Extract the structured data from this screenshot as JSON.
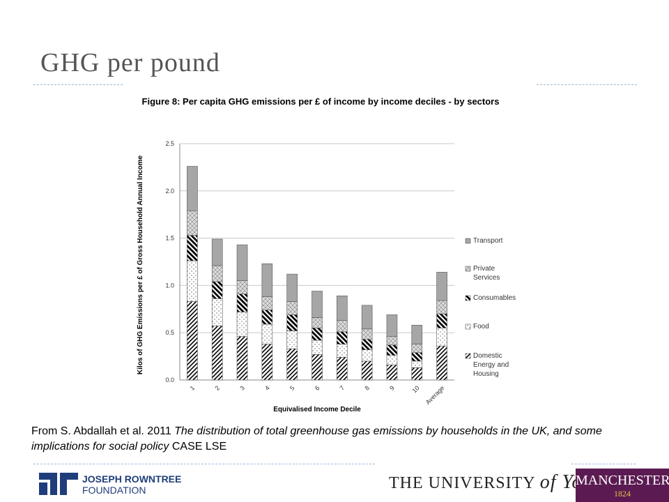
{
  "slide": {
    "title": "GHG per pound",
    "citation": {
      "prefix": "From S. Abdallah et al.  2011 ",
      "italic": "The distribution of total greenhouse gas emissions by households in the UK, and some implications for social policy",
      "suffix": " CASE LSE"
    },
    "logos": {
      "jrf_line1": "JOSEPH ROWNTREE",
      "jrf_line2": "FOUNDATION",
      "york_main": "THE UNIVERSITY",
      "york_of": "of York",
      "manchester": "MANCHESTER",
      "manchester_year": "1824"
    }
  },
  "chart_data": {
    "type": "stacked_bar",
    "title": "Figure 8: Per capita GHG emissions per £ of income by income deciles - by sectors",
    "y_label": "Kilos of GHG Emissions per £ of Gross Household Annual Income",
    "x_label": "Equivalised Income Decile",
    "categories": [
      "1",
      "2",
      "3",
      "4",
      "5",
      "6",
      "7",
      "8",
      "9",
      "10",
      "Average"
    ],
    "series": [
      {
        "name": "Domestic Energy and Housing",
        "color": "#ffffff",
        "pattern": "diagonal",
        "values": [
          0.83,
          0.57,
          0.46,
          0.38,
          0.33,
          0.27,
          0.24,
          0.2,
          0.16,
          0.13,
          0.36
        ]
      },
      {
        "name": "Food",
        "color": "#ffffff",
        "pattern": "dots",
        "values": [
          0.43,
          0.29,
          0.26,
          0.21,
          0.19,
          0.15,
          0.14,
          0.12,
          0.1,
          0.07,
          0.19
        ]
      },
      {
        "name": "Consumables",
        "color": "#ffffff",
        "pattern": "bold-backslash",
        "values": [
          0.27,
          0.18,
          0.19,
          0.15,
          0.17,
          0.13,
          0.13,
          0.11,
          0.11,
          0.09,
          0.15
        ]
      },
      {
        "name": "Private Services",
        "color": "#d9d9d9",
        "pattern": "crosshatch",
        "values": [
          0.26,
          0.17,
          0.14,
          0.14,
          0.14,
          0.11,
          0.12,
          0.11,
          0.09,
          0.09,
          0.14
        ]
      },
      {
        "name": "Transport",
        "color": "#a6a6a6",
        "pattern": "solid",
        "values": [
          0.47,
          0.28,
          0.38,
          0.35,
          0.29,
          0.28,
          0.26,
          0.25,
          0.23,
          0.2,
          0.3
        ]
      }
    ],
    "ylim": [
      0,
      2.5
    ],
    "yticks": [
      {
        "value": 0,
        "label": "0.0"
      },
      {
        "value": 0.5,
        "label": "0.5"
      },
      {
        "value": 1,
        "label": "1.0"
      },
      {
        "value": 1.5,
        "label": "1.5"
      },
      {
        "value": 2,
        "label": "2.0"
      },
      {
        "value": 2.5,
        "label": "2.5"
      }
    ],
    "grid": true,
    "legend": "right"
  }
}
